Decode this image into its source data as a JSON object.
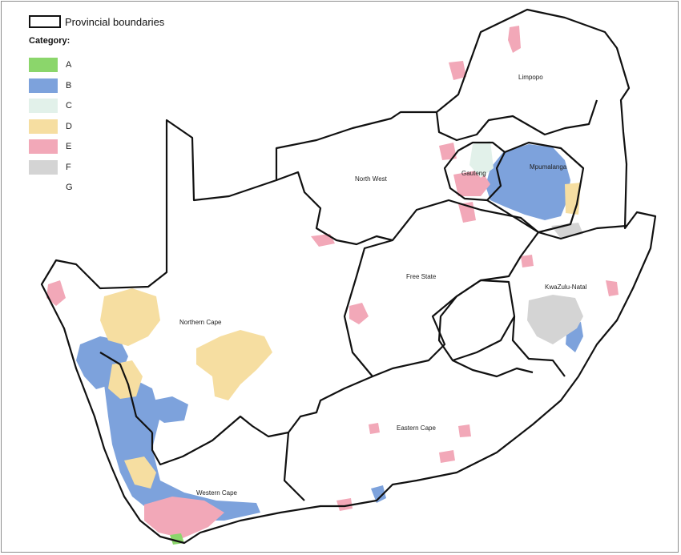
{
  "legend": {
    "provincial_boundaries": "Provincial boundaries",
    "category_title": "Category:",
    "items": [
      {
        "label": "A",
        "color": "#8bd66b"
      },
      {
        "label": "B",
        "color": "#7da2dc"
      },
      {
        "label": "C",
        "color": "#e2f1ea"
      },
      {
        "label": "D",
        "color": "#f6dea1"
      },
      {
        "label": "E",
        "color": "#f2a8b8"
      },
      {
        "label": "F",
        "color": "#d4d4d4"
      },
      {
        "label": "G",
        "color": "#ffffff"
      }
    ]
  },
  "provinces": {
    "limpopo": "Limpopo",
    "north_west": "North West",
    "gauteng": "Gauteng",
    "mpumalanga": "Mpumalanga",
    "free_state": "Free State",
    "kwazulu_natal": "KwaZulu-Natal",
    "northern_cape": "Northern Cape",
    "eastern_cape": "Eastern Cape",
    "western_cape": "Western Cape"
  }
}
